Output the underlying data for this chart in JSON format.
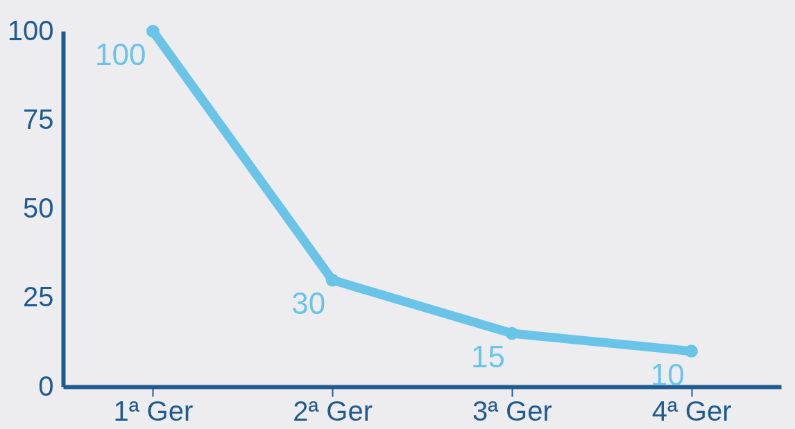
{
  "chart_data": {
    "type": "line",
    "categories": [
      "1ª Ger",
      "2ª Ger",
      "3ª Ger",
      "4ª Ger"
    ],
    "series": [
      {
        "color": "#6ac4e8",
        "values": [
          100,
          30,
          15,
          10
        ]
      }
    ],
    "ylim": [
      0,
      100
    ],
    "yticks": [
      0,
      25,
      50,
      75,
      100
    ],
    "grid": false,
    "legend": false,
    "marker": "circle",
    "line_style": "solid",
    "data_labels": true
  }
}
